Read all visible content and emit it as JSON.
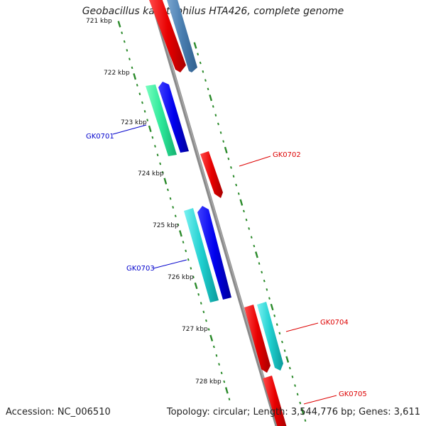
{
  "title": "Geobacillus kaustophilus HTA426, complete genome",
  "footer": {
    "accession": "Accession: NC_006510",
    "topology": "Topology: circular; Length: 3,544,776 bp; Genes: 3,611"
  },
  "colors": {
    "backbone": "#8a8a8a",
    "ticks": "#2a8a2a",
    "forward_label": "#dd0000",
    "reverse_label": "#0000cc"
  },
  "kbp_labels": [
    "721 kbp",
    "722 kbp",
    "723 kbp",
    "724 kbp",
    "725 kbp",
    "726 kbp",
    "727 kbp",
    "728 kbp"
  ],
  "genes": [
    {
      "label": "GK0701",
      "strand": "reverse"
    },
    {
      "label": "GK0702",
      "strand": "forward"
    },
    {
      "label": "GK0703",
      "strand": "reverse"
    },
    {
      "label": "GK0704",
      "strand": "forward"
    },
    {
      "label": "GK0705",
      "strand": "forward"
    }
  ]
}
